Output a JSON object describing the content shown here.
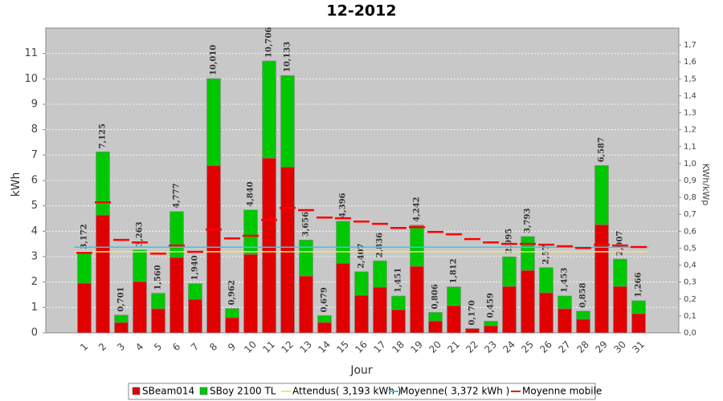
{
  "chart_data": {
    "type": "bar",
    "title": "12-2012",
    "x_label": "Jour",
    "y_label": "kWh",
    "y2_label": "KWh/kWp",
    "categories": [
      "1",
      "2",
      "3",
      "4",
      "5",
      "6",
      "7",
      "8",
      "9",
      "10",
      "11",
      "12",
      "13",
      "14",
      "15",
      "16",
      "17",
      "18",
      "19",
      "20",
      "21",
      "22",
      "23",
      "24",
      "25",
      "26",
      "27",
      "28",
      "29",
      "30",
      "31"
    ],
    "series": [
      {
        "name": "SBeam014",
        "color": "#e00000",
        "values": [
          1.96,
          4.64,
          0.41,
          2.02,
          0.95,
          2.97,
          1.32,
          6.59,
          0.6,
          3.09,
          6.88,
          6.53,
          2.24,
          0.41,
          2.74,
          1.48,
          1.8,
          0.91,
          2.62,
          0.47,
          1.07,
          0.17,
          0.28,
          1.83,
          2.46,
          1.58,
          0.95,
          0.54,
          4.26,
          1.83,
          0.76
        ]
      },
      {
        "name": "SBoy 2100 TL",
        "color": "#00c800",
        "values": [
          1.212,
          2.485,
          0.291,
          1.243,
          0.61,
          1.807,
          0.62,
          3.42,
          0.362,
          1.75,
          3.826,
          3.603,
          1.416,
          0.269,
          1.656,
          0.927,
          1.036,
          0.541,
          1.622,
          0.336,
          0.742,
          0,
          0.179,
          1.165,
          1.333,
          0.99,
          0.503,
          0.318,
          2.327,
          1.077,
          0.506
        ]
      },
      {
        "name": "Attendus( 3,193 kWh )",
        "color": "#f5e27a",
        "value": 3.193
      },
      {
        "name": "Moyenne( 3,372 kWh )",
        "color": "#3cc8dc",
        "value": 3.372
      },
      {
        "name": "Moyenne mobile",
        "color": "#ff0000",
        "values": [
          3.15,
          5.14,
          3.66,
          3.56,
          3.12,
          3.44,
          3.19,
          4.07,
          3.72,
          3.82,
          4.45,
          4.92,
          4.83,
          4.54,
          4.51,
          4.38,
          4.29,
          4.13,
          4.16,
          3.97,
          3.88,
          3.69,
          3.56,
          3.5,
          3.5,
          3.47,
          3.41,
          3.34,
          3.47,
          3.44,
          3.38
        ]
      }
    ],
    "totals": [
      3.172,
      7.125,
      0.701,
      3.263,
      1.56,
      4.777,
      1.94,
      10.01,
      0.962,
      4.84,
      10.706,
      10.133,
      3.656,
      0.679,
      4.396,
      2.407,
      2.836,
      1.451,
      4.242,
      0.806,
      1.812,
      0.17,
      0.459,
      2.995,
      3.793,
      2.57,
      1.453,
      0.858,
      6.587,
      2.907,
      1.266
    ],
    "total_labels": [
      "3,172",
      "7,125",
      "0,701",
      "3,263",
      "1,560",
      "4,777",
      "1,940",
      "10,010",
      "0,962",
      "4,840",
      "10,706",
      "10,133",
      "3,656",
      "0,679",
      "4,396",
      "2,407",
      "2,836",
      "1,451",
      "4,242",
      "0,806",
      "1,812",
      "0,170",
      "0,459",
      "2,995",
      "3,793",
      "2,57",
      "1,453",
      "0,858",
      "6,587",
      "2,907",
      "1,266"
    ],
    "ylim": [
      0,
      12
    ],
    "yticks": [
      0,
      1,
      2,
      3,
      4,
      5,
      6,
      7,
      8,
      9,
      10,
      11
    ],
    "y2lim": [
      0,
      1.8
    ],
    "y2ticks": [
      {
        "value": 0,
        "label": "0,0"
      },
      {
        "value": 0.1,
        "label": "0,1"
      },
      {
        "value": 0.2,
        "label": "0,2"
      },
      {
        "value": 0.3,
        "label": "0,3"
      },
      {
        "value": 0.4,
        "label": "0,4"
      },
      {
        "value": 0.5,
        "label": "0,5"
      },
      {
        "value": 0.6,
        "label": "0,6"
      },
      {
        "value": 0.7,
        "label": "0,7"
      },
      {
        "value": 0.8,
        "label": "0,8"
      },
      {
        "value": 0.9,
        "label": "0,9"
      },
      {
        "value": 1,
        "label": "1,0"
      },
      {
        "value": 1.1,
        "label": "1,1"
      },
      {
        "value": 1.2,
        "label": "1,2"
      },
      {
        "value": 1.3,
        "label": "1,3"
      },
      {
        "value": 1.4,
        "label": "1,4"
      },
      {
        "value": 1.5,
        "label": "1,5"
      },
      {
        "value": 1.6,
        "label": "1,6"
      },
      {
        "value": 1.7,
        "label": "1,7"
      }
    ],
    "grid": true,
    "background": "#c8c8c8"
  }
}
